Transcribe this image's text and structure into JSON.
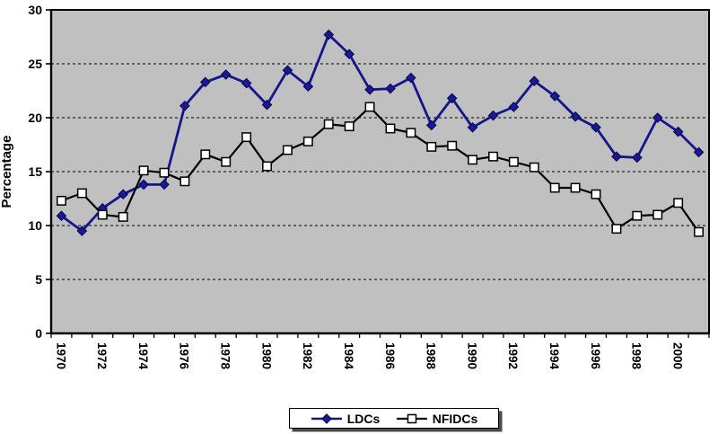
{
  "chart_data": {
    "type": "line",
    "title": "",
    "xlabel": "",
    "ylabel": "Percentage",
    "ylim": [
      0,
      30
    ],
    "yticks": [
      0,
      5,
      10,
      15,
      20,
      25,
      30
    ],
    "grid": "horizontal-dashed",
    "plot_bg": "#C0C0C0",
    "page_bg": "#FFFFFF",
    "legend_position": "bottom-center",
    "categories": [
      "1970",
      "1971",
      "1972",
      "1973",
      "1974",
      "1975",
      "1976",
      "1977",
      "1978",
      "1979",
      "1980",
      "1981",
      "1982",
      "1983",
      "1984",
      "1985",
      "1986",
      "1987",
      "1988",
      "1989",
      "1990",
      "1991",
      "1992",
      "1993",
      "1994",
      "1995",
      "1996",
      "1997",
      "1998",
      "1999",
      "2000",
      "2001"
    ],
    "xtick_labels": [
      "1970",
      "1972",
      "1974",
      "1976",
      "1978",
      "1980",
      "1982",
      "1984",
      "1986",
      "1988",
      "1990",
      "1992",
      "1994",
      "1996",
      "1998",
      "2000"
    ],
    "series": [
      {
        "name": "LDCs",
        "color": "#16168C",
        "marker": "diamond",
        "marker_fill": "#1A1A99",
        "marker_stroke": "#0A0A55",
        "line_width": 2.8,
        "values": [
          10.9,
          9.5,
          11.6,
          12.9,
          13.8,
          13.8,
          21.1,
          23.3,
          24.0,
          23.2,
          21.2,
          24.4,
          22.9,
          27.7,
          25.9,
          22.6,
          22.7,
          23.7,
          19.3,
          21.8,
          19.1,
          20.2,
          21.0,
          23.4,
          22.0,
          20.1,
          19.1,
          16.4,
          16.3,
          20.0,
          18.7,
          16.8
        ]
      },
      {
        "name": "NFIDCs",
        "color": "#000000",
        "marker": "square",
        "marker_fill": "#FFFFFF",
        "marker_stroke": "#000000",
        "line_width": 2.2,
        "values": [
          12.3,
          13.0,
          11.0,
          10.8,
          15.1,
          14.9,
          14.1,
          16.6,
          15.9,
          18.2,
          15.5,
          17.0,
          17.8,
          19.4,
          19.2,
          21.0,
          19.0,
          18.6,
          17.3,
          17.4,
          16.1,
          16.4,
          15.9,
          15.4,
          13.5,
          13.5,
          12.9,
          9.7,
          10.9,
          11.0,
          12.1,
          9.4
        ]
      }
    ]
  },
  "legend": {
    "items": [
      {
        "label": "LDCs"
      },
      {
        "label": "NFIDCs"
      }
    ]
  }
}
